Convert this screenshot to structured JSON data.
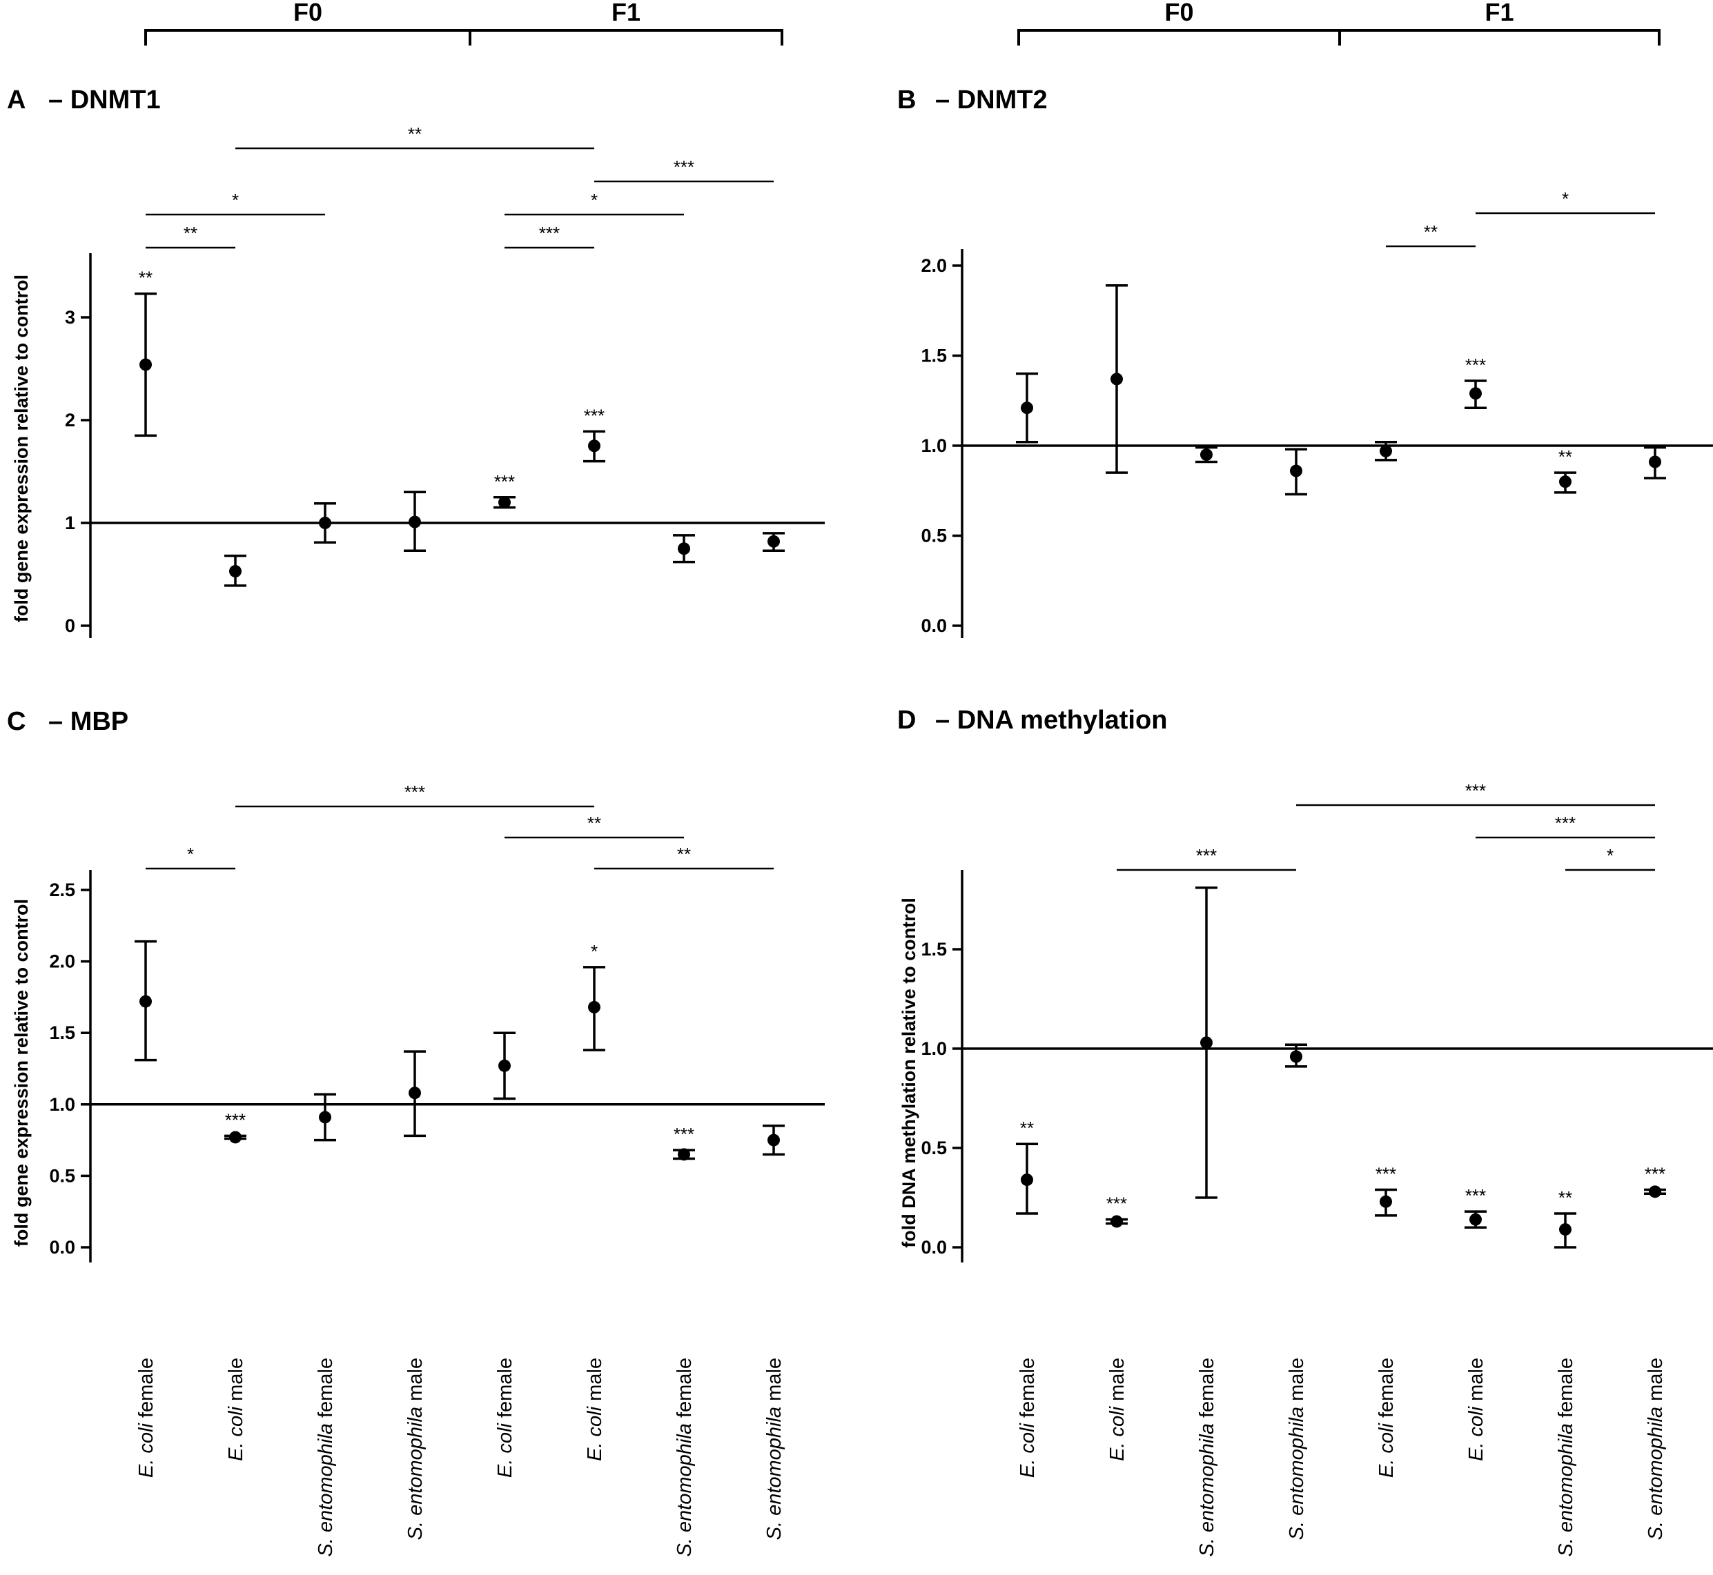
{
  "figure": {
    "generation_groups": [
      "F0",
      "F1"
    ],
    "categories": [
      {
        "species": "E. coli",
        "sex": "female"
      },
      {
        "species": "E. coli",
        "sex": "male"
      },
      {
        "species": "S. entomophila",
        "sex": "female"
      },
      {
        "species": "S. entomophila",
        "sex": "male"
      },
      {
        "species": "E. coli",
        "sex": "female"
      },
      {
        "species": "E. coli",
        "sex": "male"
      },
      {
        "species": "S. entomophila",
        "sex": "female"
      },
      {
        "species": "S. entomophila",
        "sex": "male"
      }
    ]
  },
  "chart_data": [
    {
      "id": "A",
      "type": "scatter",
      "panel_letter": "A",
      "title": "– DNMT1",
      "ylabel": "fold gene expression relative to control",
      "ylim": [
        0,
        3.7
      ],
      "yticks": [
        0,
        1,
        2,
        3
      ],
      "tick_labels": [
        "0",
        "1",
        "2",
        "3"
      ],
      "reference_line": 1,
      "points": [
        {
          "mean": 2.54,
          "low": 1.85,
          "high": 3.23,
          "sig": "**"
        },
        {
          "mean": 0.53,
          "low": 0.39,
          "high": 0.68,
          "sig": ""
        },
        {
          "mean": 1.0,
          "low": 0.81,
          "high": 1.19,
          "sig": ""
        },
        {
          "mean": 1.01,
          "low": 0.73,
          "high": 1.3,
          "sig": ""
        },
        {
          "mean": 1.2,
          "low": 1.15,
          "high": 1.25,
          "sig": "***"
        },
        {
          "mean": 1.75,
          "low": 1.6,
          "high": 1.89,
          "sig": "***"
        },
        {
          "mean": 0.75,
          "low": 0.62,
          "high": 0.88,
          "sig": ""
        },
        {
          "mean": 0.82,
          "low": 0.73,
          "high": 0.9,
          "sig": ""
        }
      ],
      "comparisons": [
        {
          "from": 0,
          "to": 2,
          "label": "*",
          "level": 1
        },
        {
          "from": 0,
          "to": 1,
          "label": "**",
          "level": 0
        },
        {
          "from": 1,
          "to": 5,
          "label": "**",
          "level": 3
        },
        {
          "from": 4,
          "to": 5,
          "label": "***",
          "level": 0
        },
        {
          "from": 4,
          "to": 6,
          "label": "*",
          "level": 1
        },
        {
          "from": 5,
          "to": 7,
          "label": "***",
          "level": 2
        }
      ]
    },
    {
      "id": "B",
      "type": "scatter",
      "panel_letter": "B",
      "title": "– DNMT2",
      "ylabel": "",
      "ylim": [
        0,
        2.1
      ],
      "yticks": [
        0,
        0.5,
        1,
        1.5,
        2
      ],
      "tick_labels": [
        "0.0",
        "0.5",
        "1.0",
        "1.5",
        "2.0"
      ],
      "reference_line": 1,
      "points": [
        {
          "mean": 1.21,
          "low": 1.02,
          "high": 1.4,
          "sig": ""
        },
        {
          "mean": 1.37,
          "low": 0.85,
          "high": 1.89,
          "sig": ""
        },
        {
          "mean": 0.95,
          "low": 0.91,
          "high": 0.99,
          "sig": ""
        },
        {
          "mean": 0.86,
          "low": 0.73,
          "high": 0.98,
          "sig": ""
        },
        {
          "mean": 0.97,
          "low": 0.92,
          "high": 1.02,
          "sig": ""
        },
        {
          "mean": 1.29,
          "low": 1.21,
          "high": 1.36,
          "sig": "***"
        },
        {
          "mean": 0.8,
          "low": 0.74,
          "high": 0.85,
          "sig": "**"
        },
        {
          "mean": 0.91,
          "low": 0.82,
          "high": 0.99,
          "sig": ""
        }
      ],
      "comparisons": [
        {
          "from": 4,
          "to": 5,
          "label": "**",
          "level": 0
        },
        {
          "from": 5,
          "to": 7,
          "label": "*",
          "level": 1
        }
      ]
    },
    {
      "id": "C",
      "type": "scatter",
      "panel_letter": "C",
      "title": "– MBP",
      "ylabel": "fold gene expression relative to control",
      "ylim": [
        -0.12,
        2.65
      ],
      "yticks": [
        0,
        0.5,
        1,
        1.5,
        2,
        2.5
      ],
      "tick_labels": [
        "0.0",
        "0.5",
        "1.0",
        "1.5",
        "2.0",
        "2.5"
      ],
      "reference_line": 1,
      "points": [
        {
          "mean": 1.72,
          "low": 1.31,
          "high": 2.14,
          "sig": ""
        },
        {
          "mean": 0.77,
          "low": 0.76,
          "high": 0.78,
          "sig": "***"
        },
        {
          "mean": 0.91,
          "low": 0.75,
          "high": 1.07,
          "sig": ""
        },
        {
          "mean": 1.08,
          "low": 0.78,
          "high": 1.37,
          "sig": ""
        },
        {
          "mean": 1.27,
          "low": 1.04,
          "high": 1.5,
          "sig": ""
        },
        {
          "mean": 1.68,
          "low": 1.38,
          "high": 1.96,
          "sig": "*"
        },
        {
          "mean": 0.65,
          "low": 0.62,
          "high": 0.68,
          "sig": "***"
        },
        {
          "mean": 0.75,
          "low": 0.65,
          "high": 0.85,
          "sig": ""
        }
      ],
      "comparisons": [
        {
          "from": 0,
          "to": 1,
          "label": "*",
          "level": 0
        },
        {
          "from": 5,
          "to": 7,
          "label": "**",
          "level": 0
        },
        {
          "from": 4,
          "to": 6,
          "label": "**",
          "level": 1
        },
        {
          "from": 1,
          "to": 5,
          "label": "***",
          "level": 2
        }
      ]
    },
    {
      "id": "D",
      "type": "scatter",
      "panel_letter": "D",
      "title": "– DNA methylation",
      "ylabel": "fold DNA methylation relative to control",
      "ylim": [
        -0.09,
        1.9
      ],
      "yticks": [
        0,
        0.5,
        1,
        1.5
      ],
      "tick_labels": [
        "0.0",
        "0.5",
        "1.0",
        "1.5"
      ],
      "reference_line": 1,
      "points": [
        {
          "mean": 0.34,
          "low": 0.17,
          "high": 0.52,
          "sig": "**"
        },
        {
          "mean": 0.13,
          "low": 0.12,
          "high": 0.14,
          "sig": "***"
        },
        {
          "mean": 1.03,
          "low": 0.25,
          "high": 1.81,
          "sig": ""
        },
        {
          "mean": 0.96,
          "low": 0.91,
          "high": 1.02,
          "sig": ""
        },
        {
          "mean": 0.23,
          "low": 0.16,
          "high": 0.29,
          "sig": "***"
        },
        {
          "mean": 0.14,
          "low": 0.1,
          "high": 0.18,
          "sig": "***"
        },
        {
          "mean": 0.09,
          "low": 0.0,
          "high": 0.17,
          "sig": "**"
        },
        {
          "mean": 0.28,
          "low": 0.27,
          "high": 0.29,
          "sig": "***"
        }
      ],
      "comparisons": [
        {
          "from": 1,
          "to": 3,
          "label": "***",
          "level": 0
        },
        {
          "from": 6,
          "to": 7,
          "label": "*",
          "level": 0
        },
        {
          "from": 5,
          "to": 7,
          "label": "***",
          "level": 1
        },
        {
          "from": 3,
          "to": 7,
          "label": "***",
          "level": 2
        }
      ]
    }
  ]
}
